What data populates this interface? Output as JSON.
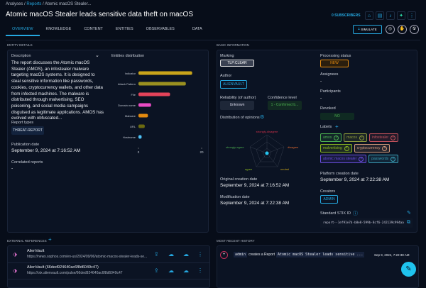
{
  "breadcrumb": {
    "root": "Analyses",
    "section": "Reports",
    "current": "Atomic macOS Stealer..."
  },
  "header": {
    "title": "Atomic macOS Stealer leads sensitive data theft on macOS",
    "subscribers": "0 SUBSCRIBERS",
    "simulate": "SIMULATE"
  },
  "tabs": [
    "OVERVIEW",
    "KNOWLEDGE",
    "CONTENT",
    "ENTITIES",
    "OBSERVABLES",
    "DATA"
  ],
  "entity": {
    "section": "ENTITY DETAILS",
    "description_label": "Description",
    "description": "The report discusses the Atomic macOS Stealer (AMOS), an infostealer malware targeting macOS systems. It is designed to steal sensitive information like passwords, cookies, cryptocurrency wallets, and other data from infected machines. The malware is distributed through malvertising, SEO poisoning, and social media campaigns disguised as legitimate applications. AMOS has evolved with obfuscated...",
    "report_types_label": "Report types",
    "report_type": "THREAT-REPORT",
    "publication_label": "Publication date",
    "publication": "September 9, 2024 at 7:16:52 AM",
    "correlated_label": "Correlated reports",
    "correlated": "-"
  },
  "chart_data": {
    "type": "bar",
    "orientation": "horizontal",
    "title": "Entities distribution",
    "categories": [
      "Indicator",
      "Attack Pattern",
      "File",
      "Domain name",
      "Malware",
      "URL",
      "Hostname"
    ],
    "values": [
      17,
      15,
      10,
      4,
      3,
      2,
      1
    ],
    "colors": [
      "#c9a41a",
      "#9a9020",
      "#e4435a",
      "#e94bc4",
      "#e38a0f",
      "#6b6a10",
      "#4fc3f7"
    ],
    "xlim": [
      0,
      20
    ],
    "xticks": [
      "0",
      "20"
    ]
  },
  "basic": {
    "section": "BASIC INFORMATION",
    "marking_label": "Marking",
    "marking": "TLP:CLEAR",
    "author_label": "Author",
    "author": "ALIENVAULT",
    "reliability_label": "Reliability (of author)",
    "reliability": "Unknown",
    "confidence_label": "Confidence level",
    "confidence": "1 - Confirmed b...",
    "opinions_label": "Distribution of opinions",
    "radar": [
      "strongly-disagree",
      "disagree",
      "neutral",
      "agree",
      "strongly-agree"
    ],
    "orig_label": "Original creation date",
    "orig": "September 9, 2024 at 7:16:52 AM",
    "mod_label": "Modification date",
    "mod": "September 9, 2024 at 7:22:38 AM",
    "status_label": "Processing status",
    "status": "NEW",
    "assignees_label": "Assignees",
    "assignees": "-",
    "participants_label": "Participants",
    "participants": "-",
    "revoked_label": "Revoked",
    "revoked": "NO",
    "labels_label": "Labels",
    "labels": [
      {
        "t": "amos",
        "c": "#4caf50"
      },
      {
        "t": "macos",
        "c": "#8c9a3a"
      },
      {
        "t": "infostealer",
        "c": "#c0505a"
      },
      {
        "t": "malvertising",
        "c": "#8bb81f"
      },
      {
        "t": "cryptocurrency",
        "c": "#d29a7a"
      },
      {
        "t": "atomic macos stealer",
        "c": "#6a4de0"
      },
      {
        "t": "passwords",
        "c": "#3aa0b8"
      }
    ],
    "platform_label": "Platform creation date",
    "platform": "September 9, 2024 at 7:22:38 AM",
    "creators_label": "Creators",
    "creator": "ADMIN",
    "stix_label": "Standard STIX ID",
    "stix": "report--1ef91e7b-b8e8-599b-8cf6-242139c994aa"
  },
  "refs": {
    "section": "EXTERNAL REFERENCES",
    "items": [
      {
        "name": "AlienVault",
        "url": "https://news.sophos.com/en-us/2024/09/06/atomic-macos-stealer-leads-se..."
      },
      {
        "name": "AlienVault (66ded924640ac6f8d6049c47)",
        "url": "https://otx.alienvault.com/pulse/66ded924640ac6f8d6049c47"
      }
    ]
  },
  "history": {
    "section": "MOST RECENT HISTORY",
    "user": "admin",
    "action": "creates a Report",
    "object": "Atomic macOS Stealer leads sensitive ...",
    "time": "Sep 9, 2024, 7:22:38 AM"
  }
}
